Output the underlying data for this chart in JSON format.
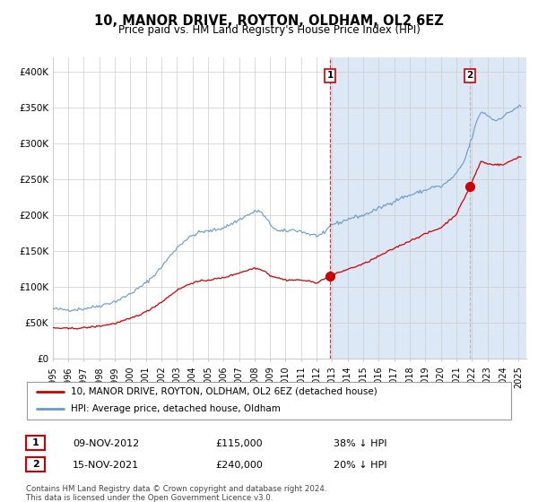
{
  "title": "10, MANOR DRIVE, ROYTON, OLDHAM, OL2 6EZ",
  "subtitle": "Price paid vs. HM Land Registry's House Price Index (HPI)",
  "hpi_label": "HPI: Average price, detached house, Oldham",
  "price_label": "10, MANOR DRIVE, ROYTON, OLDHAM, OL2 6EZ (detached house)",
  "legend1_date": "09-NOV-2012",
  "legend1_price": "£115,000",
  "legend1_hpi": "38% ↓ HPI",
  "legend2_date": "15-NOV-2021",
  "legend2_price": "£240,000",
  "legend2_hpi": "20% ↓ HPI",
  "footnote": "Contains HM Land Registry data © Crown copyright and database right 2024.\nThis data is licensed under the Open Government Licence v3.0.",
  "ylim": [
    0,
    420000
  ],
  "yticks": [
    0,
    50000,
    100000,
    150000,
    200000,
    250000,
    300000,
    350000,
    400000
  ],
  "ytick_labels": [
    "£0",
    "£50K",
    "£100K",
    "£150K",
    "£200K",
    "£250K",
    "£300K",
    "£350K",
    "£400K"
  ],
  "hpi_color": "#6699cc",
  "price_color": "#cc0000",
  "sale1_x": 2012.86,
  "sale1_y": 115000,
  "sale2_x": 2021.88,
  "sale2_y": 240000,
  "vline1_x": 2012.86,
  "vline2_x": 2021.88,
  "background_plot": "#ffffff",
  "shade_color": "#dce8f5",
  "background_fig": "#ffffff",
  "grid_color": "#cccccc",
  "title_fontsize": 11,
  "subtitle_fontsize": 9,
  "xlim_start": 1995.0,
  "xlim_end": 2025.5
}
